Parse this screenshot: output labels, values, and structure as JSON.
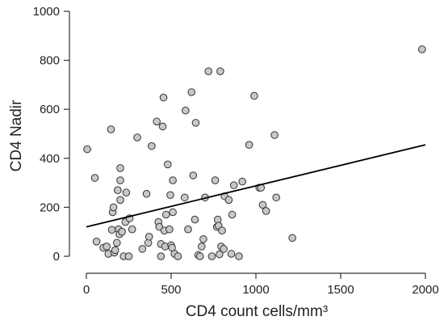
{
  "chart_data": {
    "type": "scatter",
    "xlabel": "CD4 count cells/mm³",
    "ylabel": "CD4 Nadir",
    "xlim": [
      0,
      2000
    ],
    "ylim": [
      0,
      1000
    ],
    "x_ticks": [
      0,
      500,
      1000,
      1500,
      2000
    ],
    "y_ticks": [
      0,
      200,
      400,
      600,
      800,
      1000
    ],
    "grid": false,
    "legend": "none",
    "colors": {
      "marker_fill": "#c8c8c8",
      "marker_stroke": "#333333",
      "line": "#000000",
      "axis": "#333333"
    },
    "trendline": {
      "x": [
        0,
        2000
      ],
      "y": [
        120,
        455
      ]
    },
    "points": [
      [
        5,
        437
      ],
      [
        50,
        320
      ],
      [
        60,
        60
      ],
      [
        100,
        35
      ],
      [
        120,
        40
      ],
      [
        130,
        10
      ],
      [
        145,
        518
      ],
      [
        150,
        108
      ],
      [
        155,
        180
      ],
      [
        160,
        200
      ],
      [
        165,
        15
      ],
      [
        170,
        25
      ],
      [
        180,
        55
      ],
      [
        185,
        270
      ],
      [
        190,
        110
      ],
      [
        195,
        90
      ],
      [
        200,
        360
      ],
      [
        200,
        310
      ],
      [
        200,
        230
      ],
      [
        210,
        100
      ],
      [
        220,
        0
      ],
      [
        230,
        140
      ],
      [
        235,
        260
      ],
      [
        250,
        0
      ],
      [
        255,
        155
      ],
      [
        270,
        110
      ],
      [
        300,
        485
      ],
      [
        330,
        30
      ],
      [
        355,
        255
      ],
      [
        365,
        55
      ],
      [
        370,
        80
      ],
      [
        385,
        450
      ],
      [
        415,
        550
      ],
      [
        425,
        140
      ],
      [
        430,
        120
      ],
      [
        440,
        0
      ],
      [
        440,
        50
      ],
      [
        450,
        530
      ],
      [
        455,
        648
      ],
      [
        460,
        105
      ],
      [
        465,
        40
      ],
      [
        470,
        170
      ],
      [
        480,
        375
      ],
      [
        490,
        110
      ],
      [
        495,
        250
      ],
      [
        500,
        45
      ],
      [
        505,
        35
      ],
      [
        510,
        310
      ],
      [
        510,
        180
      ],
      [
        520,
        10
      ],
      [
        540,
        0
      ],
      [
        580,
        240
      ],
      [
        585,
        595
      ],
      [
        600,
        110
      ],
      [
        620,
        670
      ],
      [
        630,
        330
      ],
      [
        640,
        150
      ],
      [
        645,
        545
      ],
      [
        660,
        5
      ],
      [
        670,
        0
      ],
      [
        680,
        40
      ],
      [
        690,
        70
      ],
      [
        700,
        240
      ],
      [
        720,
        755
      ],
      [
        740,
        0
      ],
      [
        760,
        310
      ],
      [
        770,
        120
      ],
      [
        775,
        150
      ],
      [
        780,
        125
      ],
      [
        785,
        8
      ],
      [
        790,
        755
      ],
      [
        795,
        40
      ],
      [
        800,
        105
      ],
      [
        810,
        30
      ],
      [
        815,
        245
      ],
      [
        840,
        230
      ],
      [
        855,
        10
      ],
      [
        860,
        170
      ],
      [
        870,
        290
      ],
      [
        900,
        0
      ],
      [
        920,
        305
      ],
      [
        960,
        455
      ],
      [
        990,
        655
      ],
      [
        1020,
        280
      ],
      [
        1030,
        280
      ],
      [
        1040,
        210
      ],
      [
        1060,
        185
      ],
      [
        1110,
        495
      ],
      [
        1120,
        240
      ],
      [
        1215,
        75
      ],
      [
        1980,
        845
      ]
    ]
  }
}
